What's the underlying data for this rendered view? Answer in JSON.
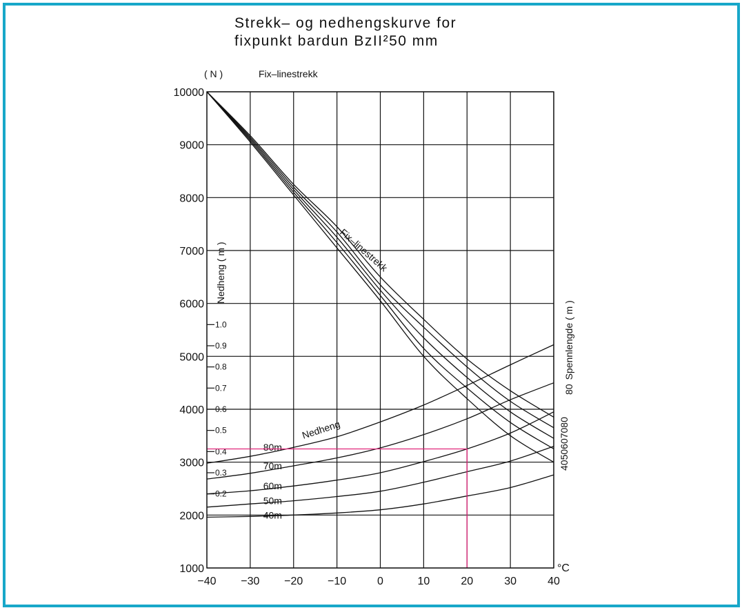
{
  "chart_data": {
    "type": "line",
    "title_lines": [
      "Strekk– og nedhengskurve for",
      "fixpunkt bardun BzII²50 mm"
    ],
    "y_unit": "( N )",
    "y_header": "Fix–linestrekk",
    "x_unit": "°C",
    "xlim": [
      -40,
      40
    ],
    "ylim": [
      1000,
      10000
    ],
    "x_ticks": [
      -40,
      -30,
      -20,
      -10,
      0,
      10,
      20,
      30,
      40
    ],
    "x_tick_labels": [
      "−40",
      "−30",
      "−20",
      "−10",
      "0",
      "10",
      "20",
      "30",
      "40"
    ],
    "y_ticks": [
      1000,
      2000,
      3000,
      4000,
      5000,
      6000,
      7000,
      8000,
      9000,
      10000
    ],
    "y_tick_labels": [
      "1000",
      "2000",
      "3000",
      "4000",
      "5000",
      "6000",
      "7000",
      "8000",
      "9000",
      "10000"
    ],
    "grid": true,
    "sag_axis": {
      "label": "Nedheng ( m )",
      "ticks": [
        0.2,
        0.3,
        0.4,
        0.5,
        0.6,
        0.7,
        0.8,
        0.9,
        1.0
      ],
      "tick_labels": [
        "0.2",
        "0.3",
        "0.4",
        "0.5",
        "0.6",
        "0.7",
        "0.8",
        "0.9",
        "1.0"
      ],
      "y_equiv": [
        2400,
        2800,
        3200,
        3600,
        4000,
        4400,
        4800,
        5200,
        5600
      ]
    },
    "span_axis": {
      "label": "Spennlengde ( m )",
      "label_value": "80",
      "spans": [
        "40",
        "50",
        "60",
        "70",
        "80"
      ]
    },
    "tension_label": "Fix–linestrekk",
    "sag_label": "Nedheng",
    "x_samples": [
      -40,
      -30,
      -20,
      -10,
      0,
      10,
      20,
      30,
      40
    ],
    "tension_series": [
      {
        "name": "40",
        "values": [
          10000,
          9050,
          8050,
          7050,
          6050,
          5000,
          4200,
          3500,
          3000
        ]
      },
      {
        "name": "50",
        "values": [
          10000,
          9080,
          8100,
          7150,
          6150,
          5150,
          4400,
          3750,
          3250
        ]
      },
      {
        "name": "60",
        "values": [
          10000,
          9110,
          8150,
          7250,
          6250,
          5350,
          4600,
          3950,
          3450
        ]
      },
      {
        "name": "70",
        "values": [
          10000,
          9140,
          8200,
          7350,
          6350,
          5550,
          4800,
          4150,
          3650
        ]
      },
      {
        "name": "80",
        "values": [
          10000,
          9170,
          8250,
          7450,
          6500,
          5700,
          4950,
          4350,
          3850
        ]
      }
    ],
    "sag_series": [
      {
        "name": "40m",
        "values": [
          1960,
          1975,
          2000,
          2040,
          2100,
          2210,
          2360,
          2520,
          2760
        ]
      },
      {
        "name": "50m",
        "values": [
          2150,
          2210,
          2270,
          2350,
          2450,
          2620,
          2820,
          3020,
          3300
        ]
      },
      {
        "name": "60m",
        "values": [
          2400,
          2460,
          2550,
          2660,
          2800,
          3010,
          3250,
          3550,
          3950
        ]
      },
      {
        "name": "70m",
        "values": [
          2680,
          2790,
          2930,
          3080,
          3270,
          3520,
          3820,
          4180,
          4500
        ]
      },
      {
        "name": "80m",
        "values": [
          2980,
          3110,
          3280,
          3480,
          3760,
          4080,
          4450,
          4840,
          5220
        ]
      }
    ],
    "reference_marker": {
      "x": 20,
      "y": 3250,
      "color": "#e0247a"
    }
  }
}
